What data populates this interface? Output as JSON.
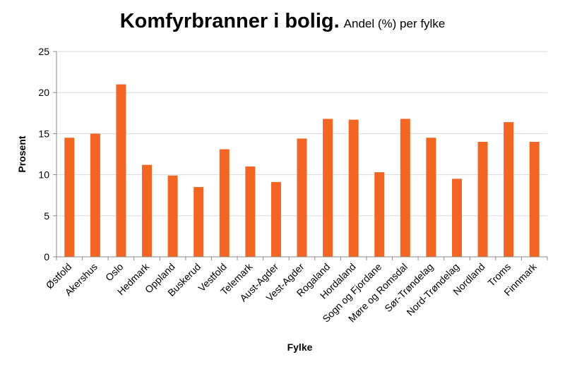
{
  "chart_data": {
    "type": "bar",
    "title": "Komfyrbranner i bolig.",
    "subtitle": "Andel (%) per fylke",
    "xlabel": "Fylke",
    "ylabel": "Prosent",
    "ylim": [
      0,
      25
    ],
    "yticks": [
      0,
      5,
      10,
      15,
      20,
      25
    ],
    "grid": true,
    "legend": "none",
    "bar_color": "#f26522",
    "categories": [
      "Østfold",
      "Akershus",
      "Oslo",
      "Hedmark",
      "Oppland",
      "Buskerud",
      "Vestfold",
      "Telemark",
      "Aust-Agder",
      "Vest-Agder",
      "Rogaland",
      "Hordaland",
      "Sogn og Fjordane",
      "Møre og Romsdal",
      "Sør-Trøndelag",
      "Nord-Trøndelag",
      "Nordland",
      "Troms",
      "Finnmark"
    ],
    "values": [
      14.5,
      15.0,
      21.0,
      11.2,
      9.9,
      8.5,
      13.1,
      11.0,
      9.1,
      14.4,
      16.8,
      16.7,
      10.3,
      16.8,
      14.5,
      9.5,
      14.0,
      16.4,
      14.0
    ]
  }
}
